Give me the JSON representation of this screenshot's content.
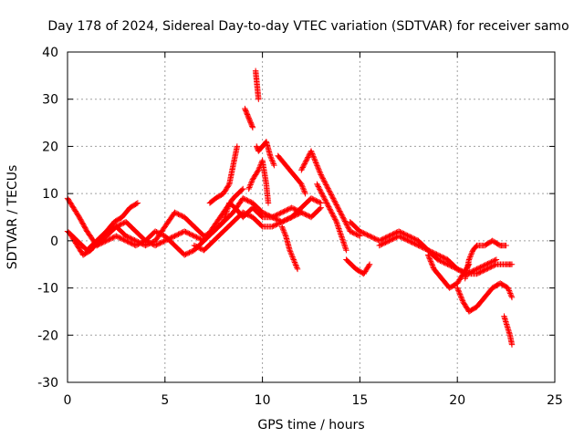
{
  "chart_data": {
    "type": "scatter",
    "title": "Day 178 of 2024, Sidereal Day-to-day VTEC variation (SDTVAR) for receiver samo",
    "xlabel": "GPS time / hours",
    "ylabel": "SDTVAR / TECUs",
    "xlim": [
      0,
      25
    ],
    "ylim": [
      -30,
      40
    ],
    "x_ticks": [
      0,
      5,
      10,
      15,
      20,
      25
    ],
    "x_tick_labels": [
      "0",
      "5",
      "10",
      "15",
      "20",
      "25"
    ],
    "y_ticks": [
      -30,
      -20,
      -10,
      0,
      10,
      20,
      30,
      40
    ],
    "y_tick_labels": [
      "-30",
      "-20",
      "-10",
      "0",
      "10",
      "20",
      "30",
      "40"
    ],
    "grid": true,
    "marker": "+",
    "series_color": "#ff0000",
    "series": [
      {
        "name": "trace1",
        "x": [
          0.0,
          0.3,
          0.6,
          1.0,
          1.5,
          2.0,
          2.5,
          3.0,
          3.5,
          4.0,
          4.5,
          5.0,
          5.5,
          6.0,
          6.5,
          7.0,
          7.5,
          8.0,
          8.3,
          8.6,
          9.0,
          9.5,
          10.0,
          10.5,
          11.0,
          11.5,
          12.0,
          12.5,
          13.0
        ],
        "y": [
          9.0,
          7.0,
          5.0,
          2.0,
          -1.0,
          1.0,
          3.0,
          1.0,
          0.0,
          -1.0,
          0.0,
          3.0,
          6.0,
          5.0,
          3.0,
          1.0,
          2.0,
          4.0,
          8.0,
          7.0,
          5.0,
          7.0,
          5.0,
          5.0,
          6.0,
          7.0,
          6.0,
          5.0,
          7.0
        ]
      },
      {
        "name": "trace2",
        "x": [
          0.0,
          0.5,
          1.0,
          1.5,
          2.0,
          2.5,
          3.0,
          3.5,
          4.0,
          4.5,
          5.0,
          5.5,
          6.0,
          6.5,
          7.0,
          7.5,
          8.0,
          8.5,
          9.0,
          9.5,
          10.0,
          10.5,
          11.0,
          11.5,
          12.0
        ],
        "y": [
          2.0,
          0.0,
          -2.0,
          0.0,
          2.0,
          3.0,
          4.0,
          2.0,
          0.0,
          -1.0,
          0.0,
          1.0,
          2.0,
          1.0,
          0.0,
          2.0,
          4.0,
          6.0,
          9.0,
          8.0,
          6.0,
          5.0,
          4.0,
          5.0,
          6.0
        ]
      },
      {
        "name": "trace3",
        "x": [
          0.2,
          0.5,
          0.8,
          1.2,
          1.6,
          2.0,
          2.4,
          2.8,
          3.2,
          3.6
        ],
        "y": [
          1.0,
          -1.0,
          -3.0,
          -2.0,
          0.0,
          2.0,
          4.0,
          5.0,
          7.0,
          8.0
        ]
      },
      {
        "name": "trace4",
        "x": [
          1.5,
          2.0,
          2.5,
          3.0,
          3.5,
          4.0,
          4.5,
          5.0,
          5.5,
          6.0,
          6.5,
          7.0,
          7.5,
          8.0,
          8.5,
          9.0
        ],
        "y": [
          -1.0,
          0.0,
          1.0,
          0.0,
          -1.0,
          0.0,
          2.0,
          1.0,
          -1.0,
          -3.0,
          -2.0,
          0.0,
          3.0,
          6.0,
          9.0,
          11.0
        ]
      },
      {
        "name": "trace5",
        "x": [
          6.5,
          7.0,
          7.5,
          8.0,
          8.5,
          9.0,
          9.5,
          10.0,
          10.5,
          11.0,
          11.5,
          12.0,
          12.5,
          13.0
        ],
        "y": [
          -1.0,
          -2.0,
          0.0,
          2.0,
          4.0,
          6.0,
          5.0,
          3.0,
          3.0,
          4.0,
          5.0,
          7.0,
          9.0,
          8.0
        ]
      },
      {
        "name": "trace6",
        "x": [
          7.3,
          7.6,
          8.0,
          8.3,
          8.5,
          8.7
        ],
        "y": [
          8.0,
          9.0,
          10.0,
          12.0,
          16.0,
          20.0
        ]
      },
      {
        "name": "trace7",
        "x": [
          9.1,
          9.2,
          9.3,
          9.4,
          9.5
        ],
        "y": [
          28.0,
          27.0,
          26.0,
          25.0,
          24.0
        ]
      },
      {
        "name": "trace8",
        "x": [
          9.65,
          9.7,
          9.75,
          9.8
        ],
        "y": [
          36.0,
          34.0,
          32.0,
          30.0
        ]
      },
      {
        "name": "trace9",
        "x": [
          9.7,
          9.8,
          10.0,
          10.2,
          10.4,
          10.6
        ],
        "y": [
          20.0,
          19.0,
          20.0,
          21.0,
          18.0,
          16.0
        ]
      },
      {
        "name": "trace10",
        "x": [
          9.3,
          9.5,
          9.8,
          10.0,
          10.2,
          10.3
        ],
        "y": [
          11.0,
          13.0,
          15.0,
          17.0,
          12.0,
          8.0
        ]
      },
      {
        "name": "trace11",
        "x": [
          10.8,
          11.0,
          11.2,
          11.4,
          11.6,
          11.8,
          12.0,
          12.2
        ],
        "y": [
          18.0,
          17.0,
          16.0,
          15.0,
          14.0,
          13.0,
          12.0,
          10.0
        ]
      },
      {
        "name": "trace12",
        "x": [
          11.0,
          11.2,
          11.4,
          11.6,
          11.8
        ],
        "y": [
          3.0,
          1.0,
          -2.0,
          -4.0,
          -6.0
        ]
      },
      {
        "name": "trace13",
        "x": [
          12.0,
          12.5,
          13.0,
          13.5,
          14.0,
          14.5,
          15.0
        ],
        "y": [
          15.0,
          19.0,
          14.0,
          10.0,
          6.0,
          2.0,
          1.0
        ]
      },
      {
        "name": "trace14",
        "x": [
          12.8,
          13.3,
          13.8,
          14.3
        ],
        "y": [
          12.0,
          8.0,
          4.0,
          -2.0
        ]
      },
      {
        "name": "trace15",
        "x": [
          14.3,
          14.8,
          15.2,
          15.5
        ],
        "y": [
          -4.0,
          -6.0,
          -7.0,
          -5.0
        ]
      },
      {
        "name": "trace16",
        "x": [
          14.5,
          15.0,
          15.5,
          16.0,
          16.5,
          17.0,
          17.5,
          18.0,
          18.5,
          19.0,
          19.5,
          20.0,
          20.5,
          21.0,
          21.5,
          22.0
        ],
        "y": [
          4.0,
          2.0,
          1.0,
          0.0,
          1.0,
          2.0,
          1.0,
          0.0,
          -2.0,
          -4.0,
          -5.0,
          -6.0,
          -7.0,
          -6.0,
          -5.0,
          -4.0
        ]
      },
      {
        "name": "trace17",
        "x": [
          16.0,
          16.5,
          17.0,
          17.5,
          18.0,
          18.5,
          19.0,
          19.5,
          20.0,
          20.5,
          21.0,
          21.5,
          22.0,
          22.5,
          22.8
        ],
        "y": [
          -1.0,
          0.0,
          1.0,
          0.0,
          -1.0,
          -2.0,
          -3.0,
          -4.0,
          -6.0,
          -7.0,
          -7.0,
          -6.0,
          -5.0,
          -5.0,
          -5.0
        ]
      },
      {
        "name": "trace18",
        "x": [
          18.5,
          18.8,
          19.2,
          19.6,
          20.0,
          20.3,
          20.6
        ],
        "y": [
          -3.0,
          -6.0,
          -8.0,
          -10.0,
          -9.0,
          -7.0,
          -5.0
        ]
      },
      {
        "name": "trace19",
        "x": [
          20.4,
          20.6,
          20.8,
          21.0,
          21.4,
          21.8,
          22.2,
          22.5
        ],
        "y": [
          -8.0,
          -4.0,
          -2.0,
          -1.0,
          -1.0,
          0.0,
          -1.0,
          -1.0
        ]
      },
      {
        "name": "trace20",
        "x": [
          20.0,
          20.3,
          20.6,
          21.0,
          21.4,
          21.8,
          22.2,
          22.6,
          22.8
        ],
        "y": [
          -10.0,
          -13.0,
          -15.0,
          -14.0,
          -12.0,
          -10.0,
          -9.0,
          -10.0,
          -12.0
        ]
      },
      {
        "name": "trace21",
        "x": [
          22.4,
          22.55,
          22.7,
          22.8
        ],
        "y": [
          -16.0,
          -18.0,
          -20.0,
          -22.0
        ]
      }
    ]
  }
}
